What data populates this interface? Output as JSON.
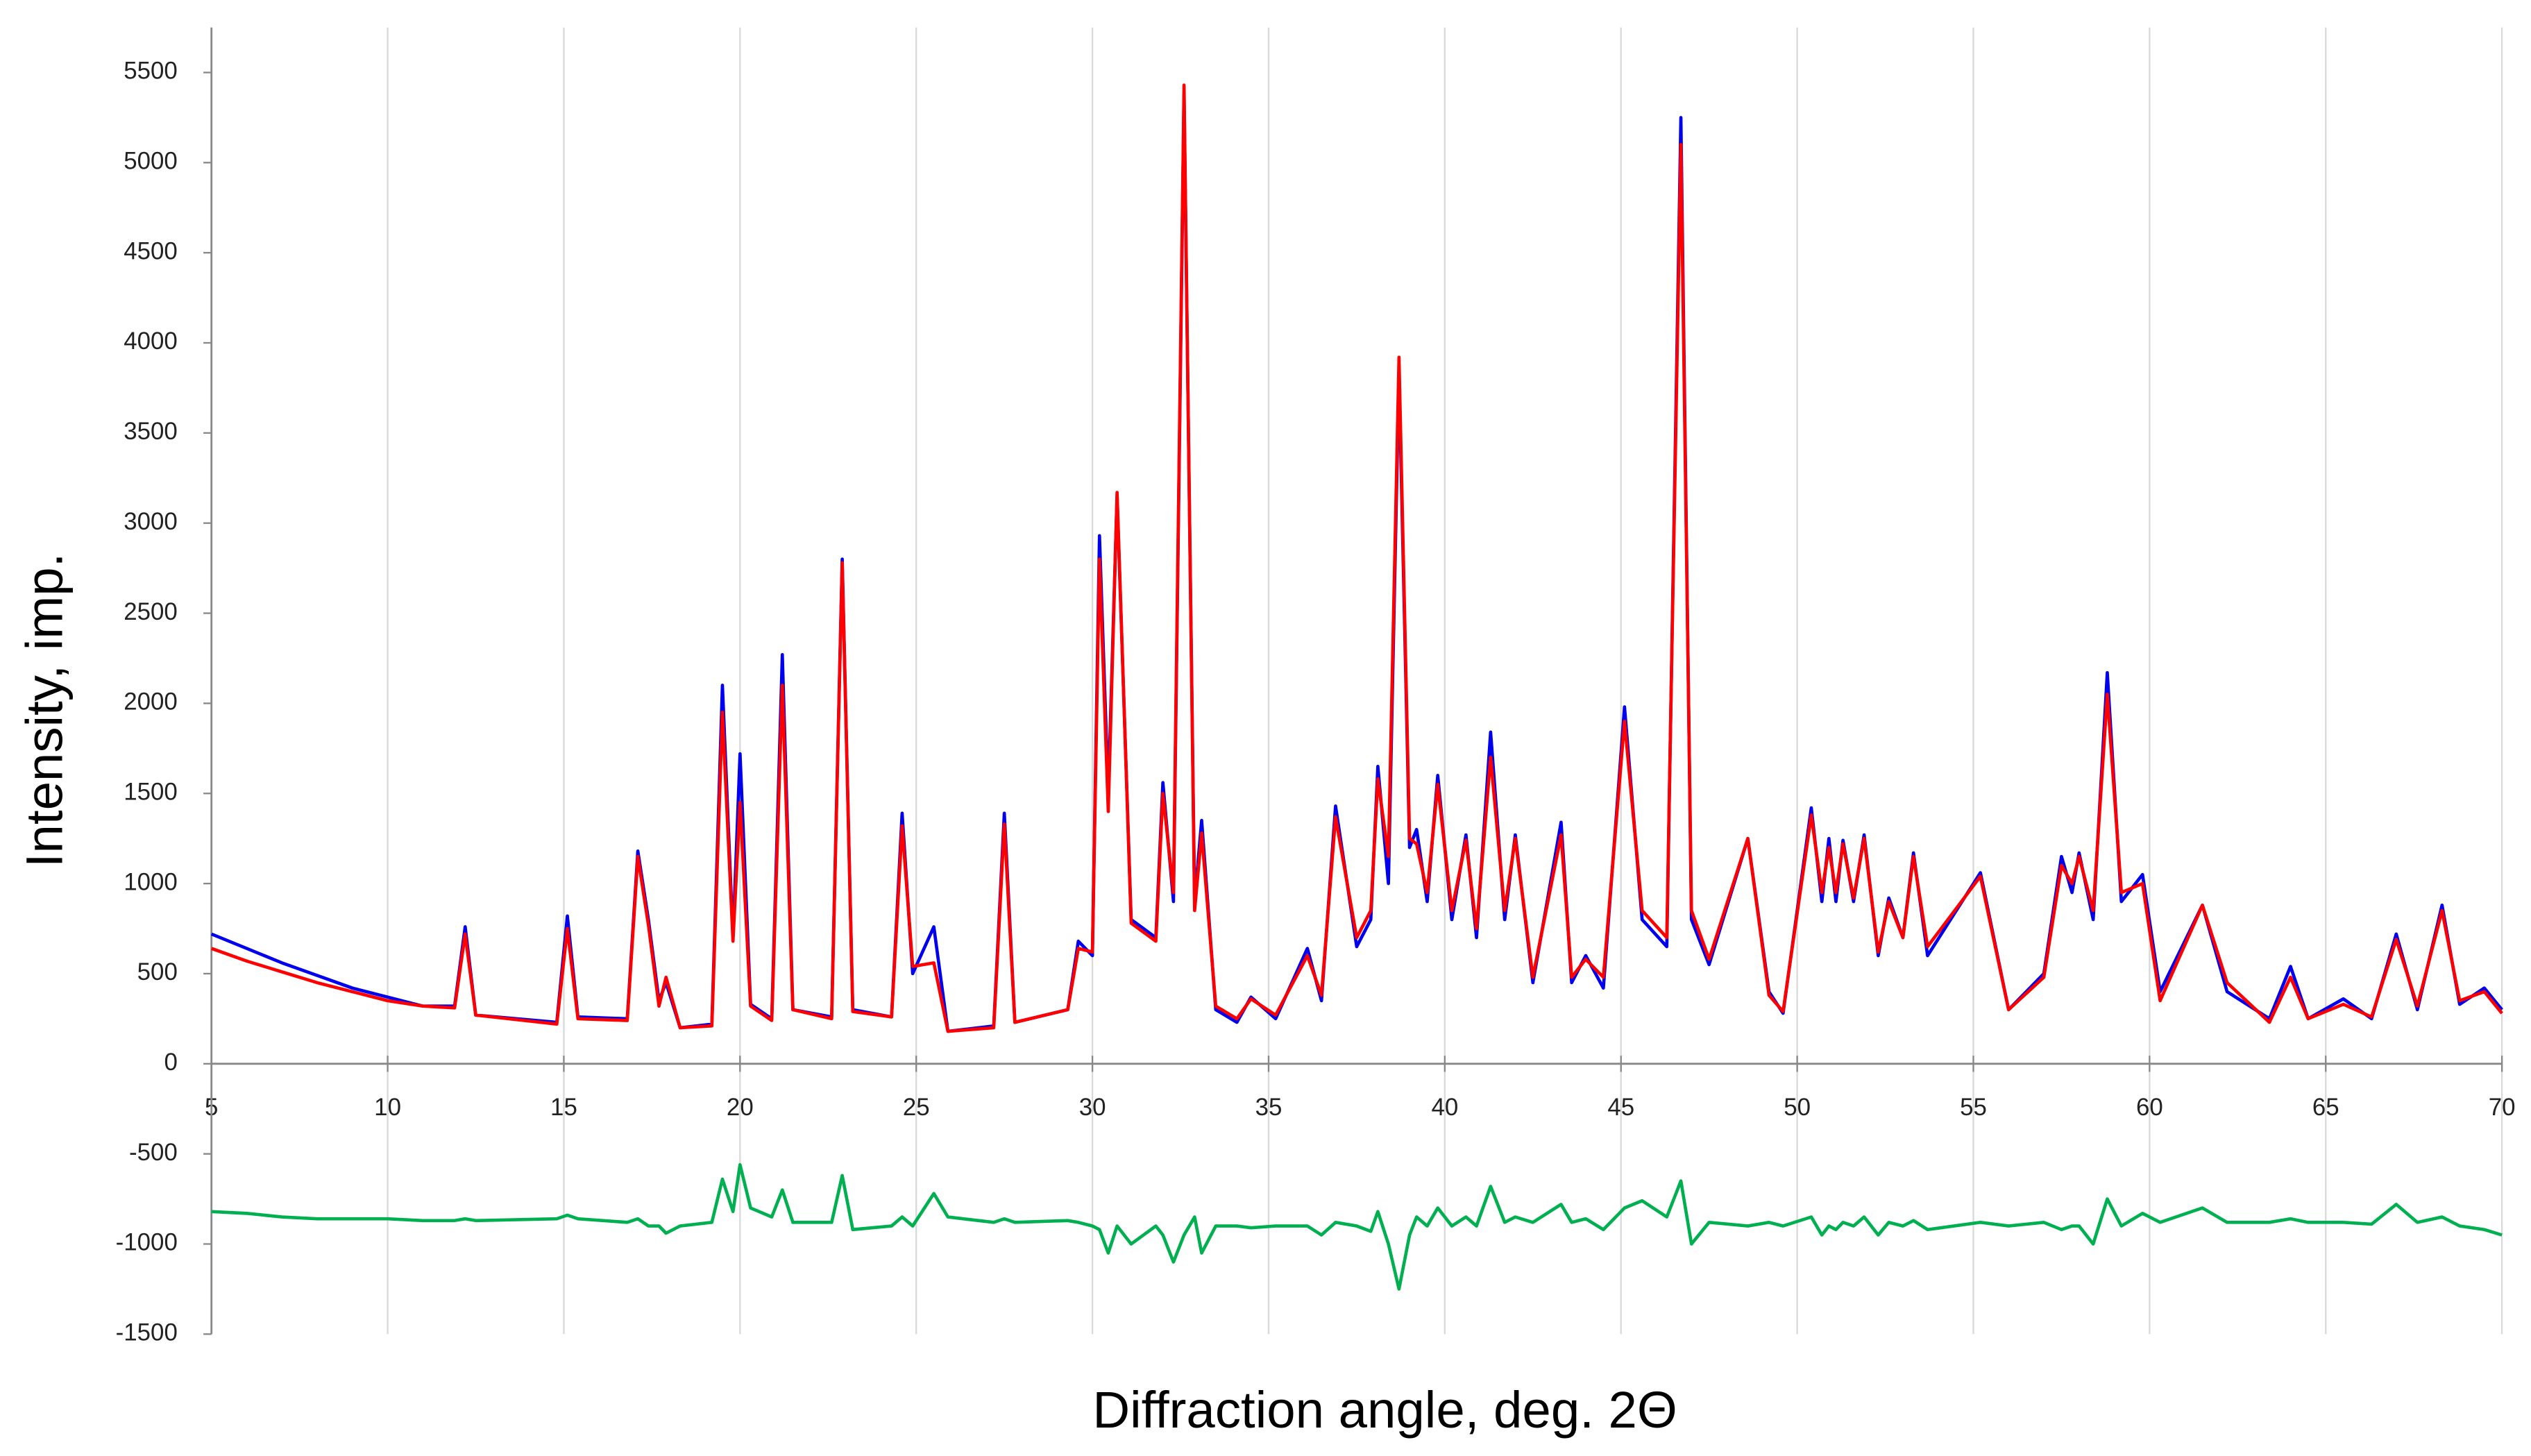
{
  "chart_data": {
    "type": "line",
    "xlabel": "Diffraction angle, deg. 2Θ",
    "ylabel": "Intensity, imp.",
    "x": [
      5,
      6,
      7,
      8,
      9,
      10,
      11,
      11.9,
      12.2,
      12.5,
      14.8,
      15.1,
      15.4,
      16.8,
      17.1,
      17.4,
      17.7,
      17.9,
      18.3,
      19.2,
      19.5,
      19.8,
      20.0,
      20.3,
      20.9,
      21.2,
      21.5,
      22.6,
      22.9,
      23.2,
      24.3,
      24.6,
      24.9,
      25.5,
      25.9,
      27.2,
      27.5,
      27.8,
      29.3,
      29.6,
      30.0,
      30.2,
      30.45,
      30.7,
      31.1,
      31.8,
      32.0,
      32.3,
      32.6,
      32.9,
      33.1,
      33.5,
      34.1,
      34.5,
      35.2,
      36.1,
      36.5,
      36.9,
      37.5,
      37.9,
      38.1,
      38.4,
      38.7,
      39.0,
      39.2,
      39.5,
      39.8,
      40.2,
      40.6,
      40.9,
      41.3,
      41.7,
      42.0,
      42.5,
      43.3,
      43.6,
      44.0,
      44.5,
      45.1,
      45.6,
      46.3,
      46.7,
      47.0,
      47.5,
      48.6,
      49.2,
      49.6,
      50.4,
      50.7,
      50.9,
      51.1,
      51.3,
      51.6,
      51.9,
      52.3,
      52.6,
      53.0,
      53.3,
      53.7,
      55.2,
      56.0,
      57.0,
      57.5,
      57.8,
      58.0,
      58.4,
      58.8,
      59.2,
      59.8,
      60.3,
      61.5,
      62.2,
      63.4,
      64.0,
      64.5,
      65.5,
      66.3,
      67.0,
      67.6,
      68.3,
      68.8,
      69.5,
      70
    ],
    "series": [
      {
        "color": "#0000ee",
        "values": [
          720,
          640,
          560,
          490,
          420,
          370,
          320,
          320,
          760,
          270,
          230,
          820,
          260,
          250,
          1180,
          800,
          350,
          450,
          200,
          220,
          2100,
          700,
          1720,
          330,
          250,
          2270,
          300,
          260,
          2800,
          300,
          260,
          1390,
          500,
          760,
          180,
          210,
          1390,
          230,
          300,
          680,
          600,
          2930,
          1500,
          3150,
          800,
          700,
          1560,
          900,
          5380,
          900,
          1350,
          300,
          230,
          370,
          250,
          640,
          350,
          1430,
          650,
          800,
          1650,
          1000,
          3830,
          1200,
          1300,
          900,
          1600,
          800,
          1270,
          700,
          1840,
          800,
          1270,
          450,
          1340,
          450,
          600,
          420,
          1980,
          800,
          650,
          5250,
          800,
          550,
          1250,
          400,
          280,
          1420,
          900,
          1250,
          900,
          1240,
          900,
          1270,
          600,
          920,
          700,
          1170,
          600,
          1060,
          300,
          500,
          1150,
          950,
          1170,
          800,
          2170,
          900,
          1050,
          400,
          880,
          400,
          250,
          540,
          250,
          360,
          250,
          720,
          300,
          880,
          330,
          420,
          300
        ]
      },
      {
        "color": "#ff0000",
        "values": [
          640,
          570,
          510,
          450,
          400,
          350,
          320,
          310,
          720,
          270,
          220,
          750,
          250,
          240,
          1150,
          770,
          320,
          480,
          200,
          210,
          1950,
          680,
          1450,
          320,
          240,
          2100,
          300,
          250,
          2780,
          290,
          260,
          1320,
          540,
          560,
          180,
          200,
          1330,
          230,
          300,
          640,
          620,
          2800,
          1400,
          3170,
          780,
          680,
          1500,
          950,
          5430,
          850,
          1280,
          320,
          250,
          360,
          270,
          600,
          380,
          1370,
          700,
          850,
          1580,
          1150,
          3920,
          1250,
          1220,
          950,
          1550,
          850,
          1240,
          750,
          1700,
          850,
          1250,
          480,
          1270,
          480,
          580,
          480,
          1900,
          850,
          700,
          5100,
          850,
          580,
          1250,
          380,
          290,
          1380,
          950,
          1200,
          950,
          1220,
          920,
          1250,
          620,
          900,
          700,
          1150,
          650,
          1040,
          300,
          480,
          1100,
          1000,
          1150,
          850,
          2050,
          950,
          1000,
          350,
          880,
          450,
          230,
          480,
          250,
          330,
          260,
          690,
          320,
          850,
          350,
          400,
          280
        ]
      },
      {
        "color": "#00b050",
        "values": [
          -820,
          -830,
          -850,
          -860,
          -860,
          -860,
          -870,
          -870,
          -860,
          -870,
          -860,
          -840,
          -860,
          -880,
          -860,
          -900,
          -900,
          -940,
          -900,
          -880,
          -640,
          -820,
          -560,
          -800,
          -850,
          -700,
          -880,
          -880,
          -620,
          -920,
          -900,
          -850,
          -900,
          -720,
          -850,
          -880,
          -860,
          -880,
          -870,
          -880,
          -900,
          -920,
          -1050,
          -900,
          -1000,
          -900,
          -950,
          -1100,
          -950,
          -850,
          -1050,
          -900,
          -900,
          -910,
          -900,
          -900,
          -950,
          -880,
          -900,
          -930,
          -820,
          -1000,
          -1250,
          -950,
          -850,
          -900,
          -800,
          -900,
          -850,
          -900,
          -680,
          -880,
          -850,
          -880,
          -780,
          -880,
          -860,
          -920,
          -800,
          -760,
          -850,
          -650,
          -1000,
          -880,
          -900,
          -880,
          -900,
          -850,
          -950,
          -900,
          -920,
          -880,
          -900,
          -850,
          -950,
          -880,
          -900,
          -870,
          -920,
          -880,
          -900,
          -880,
          -920,
          -900,
          -900,
          -1000,
          -750,
          -900,
          -830,
          -880,
          -800,
          -880,
          -880,
          -860,
          -880,
          -880,
          -890,
          -780,
          -880,
          -850,
          -900,
          -920,
          -950
        ]
      }
    ],
    "xlim": [
      5,
      70
    ],
    "xticks": [
      5,
      10,
      15,
      20,
      25,
      30,
      35,
      40,
      45,
      50,
      55,
      60,
      65,
      70
    ],
    "ylim": [
      -1500,
      5750
    ],
    "yticks": [
      -1500,
      -1000,
      -500,
      0,
      500,
      1000,
      1500,
      2000,
      2500,
      3000,
      3500,
      4000,
      4500,
      5000,
      5500
    ],
    "grid": true
  }
}
